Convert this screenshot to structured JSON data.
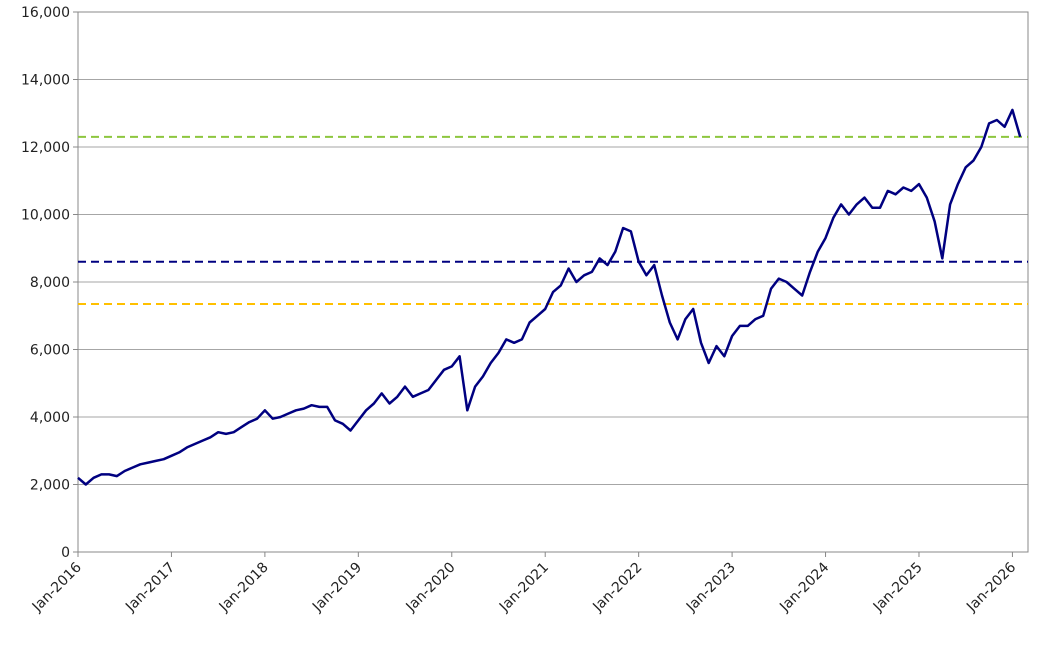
{
  "chart_data": {
    "type": "line",
    "x": [
      "2016-01",
      "2016-02",
      "2016-03",
      "2016-04",
      "2016-05",
      "2016-06",
      "2016-07",
      "2016-08",
      "2016-09",
      "2016-10",
      "2016-11",
      "2016-12",
      "2017-01",
      "2017-02",
      "2017-03",
      "2017-04",
      "2017-05",
      "2017-06",
      "2017-07",
      "2017-08",
      "2017-09",
      "2017-10",
      "2017-11",
      "2017-12",
      "2018-01",
      "2018-02",
      "2018-03",
      "2018-04",
      "2018-05",
      "2018-06",
      "2018-07",
      "2018-08",
      "2018-09",
      "2018-10",
      "2018-11",
      "2018-12",
      "2019-01",
      "2019-02",
      "2019-03",
      "2019-04",
      "2019-05",
      "2019-06",
      "2019-07",
      "2019-08",
      "2019-09",
      "2019-10",
      "2019-11",
      "2019-12",
      "2020-01",
      "2020-02",
      "2020-03",
      "2020-04",
      "2020-05",
      "2020-06",
      "2020-07",
      "2020-08",
      "2020-09",
      "2020-10",
      "2020-11",
      "2020-12",
      "2021-01",
      "2021-02",
      "2021-03",
      "2021-04",
      "2021-05",
      "2021-06",
      "2021-07",
      "2021-08",
      "2021-09",
      "2021-10",
      "2021-11",
      "2021-12",
      "2022-01",
      "2022-02",
      "2022-03",
      "2022-04",
      "2022-05",
      "2022-06",
      "2022-07",
      "2022-08",
      "2022-09",
      "2022-10",
      "2022-11",
      "2022-12",
      "2023-01",
      "2023-02",
      "2023-03",
      "2023-04",
      "2023-05",
      "2023-06",
      "2023-07",
      "2023-08",
      "2023-09",
      "2023-10",
      "2023-11",
      "2023-12",
      "2024-01",
      "2024-02",
      "2024-03",
      "2024-04",
      "2024-05",
      "2024-06",
      "2024-07",
      "2024-08",
      "2024-09",
      "2024-10",
      "2024-11",
      "2024-12",
      "2025-01",
      "2025-02",
      "2025-03",
      "2025-04",
      "2025-05",
      "2025-06",
      "2025-07",
      "2025-08",
      "2025-09",
      "2025-10",
      "2025-11",
      "2025-12",
      "2026-01",
      "2026-02"
    ],
    "series": [
      {
        "color": "#000080",
        "values": [
          2200,
          2000,
          2200,
          2300,
          2300,
          2250,
          2400,
          2500,
          2600,
          2650,
          2700,
          2750,
          2850,
          2950,
          3100,
          3200,
          3300,
          3400,
          3550,
          3500,
          3550,
          3700,
          3850,
          3950,
          4200,
          3950,
          4000,
          4100,
          4200,
          4250,
          4350,
          4300,
          4300,
          3900,
          3800,
          3600,
          3900,
          4200,
          4400,
          4700,
          4400,
          4600,
          4900,
          4600,
          4700,
          4800,
          5100,
          5400,
          5500,
          5800,
          4200,
          4900,
          5200,
          5600,
          5900,
          6300,
          6200,
          6300,
          6800,
          7000,
          7200,
          7700,
          7900,
          8400,
          8000,
          8200,
          8300,
          8700,
          8500,
          8900,
          9600,
          9500,
          8600,
          8200,
          8500,
          7600,
          6800,
          6300,
          6900,
          7200,
          6200,
          5600,
          6100,
          5800,
          6400,
          6700,
          6700,
          6900,
          7000,
          7800,
          8100,
          8000,
          7800,
          7600,
          8300,
          8900,
          9300,
          9900,
          10300,
          10000,
          10300,
          10500,
          10200,
          10200,
          10700,
          10600,
          10800,
          10700,
          10900,
          10500,
          9800,
          8700,
          10300,
          10900,
          11400,
          11600,
          12000,
          12700,
          12800,
          12600,
          13100,
          12300
        ]
      }
    ],
    "reference_lines": [
      {
        "value": 12300,
        "color": "#8dc63f"
      },
      {
        "value": 8600,
        "color": "#000080"
      },
      {
        "value": 7350,
        "color": "#ffc000"
      }
    ],
    "xlim": [
      "2016-01",
      "2026-03"
    ],
    "xticks": [
      {
        "value": "2016-01",
        "label": "Jan-2016"
      },
      {
        "value": "2017-01",
        "label": "Jan-2017"
      },
      {
        "value": "2018-01",
        "label": "Jan-2018"
      },
      {
        "value": "2019-01",
        "label": "Jan-2019"
      },
      {
        "value": "2020-01",
        "label": "Jan-2020"
      },
      {
        "value": "2021-01",
        "label": "Jan-2021"
      },
      {
        "value": "2022-01",
        "label": "Jan-2022"
      },
      {
        "value": "2023-01",
        "label": "Jan-2023"
      },
      {
        "value": "2024-01",
        "label": "Jan-2024"
      },
      {
        "value": "2025-01",
        "label": "Jan-2025"
      },
      {
        "value": "2026-01",
        "label": "Jan-2026"
      }
    ],
    "ylim": [
      0,
      16000
    ],
    "yticks": [
      0,
      {
        "value": 2000,
        "label": "2,000"
      },
      {
        "value": 4000,
        "label": "4,000"
      },
      {
        "value": 6000,
        "label": "6,000"
      },
      {
        "value": 8000,
        "label": "8,000"
      },
      {
        "value": 10000,
        "label": "10,000"
      },
      {
        "value": 12000,
        "label": "12,000"
      },
      {
        "value": 14000,
        "label": "14,000"
      },
      {
        "value": 16000,
        "label": "16,000"
      }
    ],
    "grid": true
  }
}
